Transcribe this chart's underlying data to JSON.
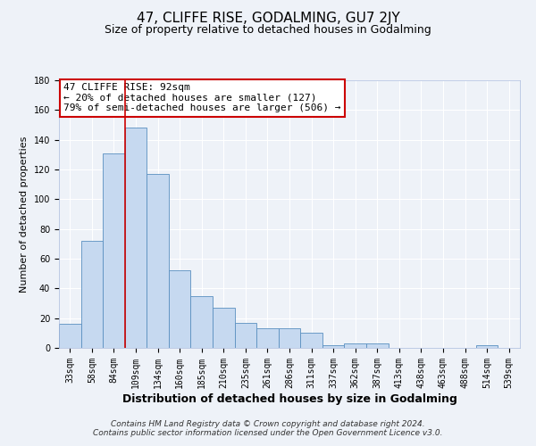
{
  "title": "47, CLIFFE RISE, GODALMING, GU7 2JY",
  "subtitle": "Size of property relative to detached houses in Godalming",
  "xlabel": "Distribution of detached houses by size in Godalming",
  "ylabel": "Number of detached properties",
  "bar_color": "#c6d9f0",
  "bar_edge_color": "#5a8fc0",
  "categories": [
    "33sqm",
    "58sqm",
    "84sqm",
    "109sqm",
    "134sqm",
    "160sqm",
    "185sqm",
    "210sqm",
    "235sqm",
    "261sqm",
    "286sqm",
    "311sqm",
    "337sqm",
    "362sqm",
    "387sqm",
    "413sqm",
    "438sqm",
    "463sqm",
    "488sqm",
    "514sqm",
    "539sqm"
  ],
  "values": [
    16,
    72,
    131,
    148,
    117,
    52,
    35,
    27,
    17,
    13,
    13,
    10,
    2,
    3,
    3,
    0,
    0,
    0,
    0,
    2,
    0
  ],
  "ylim": [
    0,
    180
  ],
  "yticks": [
    0,
    20,
    40,
    60,
    80,
    100,
    120,
    140,
    160,
    180
  ],
  "vline_idx": 2,
  "vline_color": "#cc0000",
  "annotation_title": "47 CLIFFE RISE: 92sqm",
  "annotation_line1": "← 20% of detached houses are smaller (127)",
  "annotation_line2": "79% of semi-detached houses are larger (506) →",
  "annotation_box_color": "#ffffff",
  "annotation_box_edge_color": "#cc0000",
  "footer_line1": "Contains HM Land Registry data © Crown copyright and database right 2024.",
  "footer_line2": "Contains public sector information licensed under the Open Government Licence v3.0.",
  "background_color": "#eef2f8",
  "grid_color": "#ffffff",
  "title_fontsize": 11,
  "subtitle_fontsize": 9,
  "xlabel_fontsize": 9,
  "ylabel_fontsize": 8,
  "tick_fontsize": 7,
  "annotation_fontsize": 8,
  "footer_fontsize": 6.5
}
